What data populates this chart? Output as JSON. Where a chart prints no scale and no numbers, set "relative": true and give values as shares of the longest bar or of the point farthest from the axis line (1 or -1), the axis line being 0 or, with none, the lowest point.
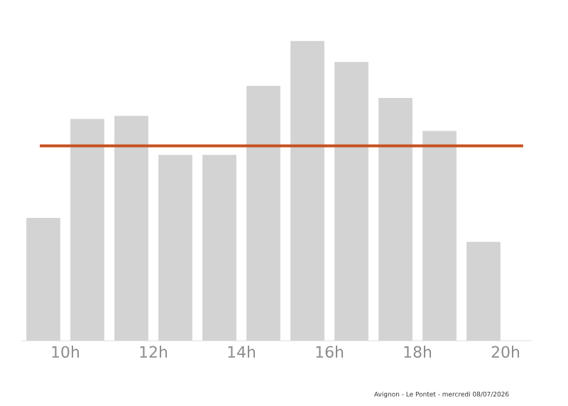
{
  "chart_data": {
    "type": "bar",
    "relative": true,
    "color": "#d3d3d3",
    "x": [
      9.5,
      10.5,
      11.5,
      12.5,
      13.5,
      14.5,
      15.5,
      16.5,
      17.5,
      18.5,
      19.5
    ],
    "values": [
      0.41,
      0.74,
      0.75,
      0.62,
      0.62,
      0.85,
      1,
      0.93,
      0.81,
      0.7,
      0.33
    ],
    "xticks": [
      {
        "value": 10,
        "label": "10h"
      },
      {
        "value": 12,
        "label": "12h"
      },
      {
        "value": 14,
        "label": "14h"
      },
      {
        "value": 16,
        "label": "16h"
      },
      {
        "value": 18,
        "label": "18h"
      },
      {
        "value": 20,
        "label": "20h"
      }
    ],
    "xlim": [
      9,
      20.6
    ],
    "tick_labels": "x",
    "ref_lines": [
      {
        "axis": "y",
        "value": 0.65,
        "color": "#c8501e"
      }
    ],
    "annotations": [
      "Avignon - Le Pontet - mercredi 08/07/2026"
    ]
  }
}
